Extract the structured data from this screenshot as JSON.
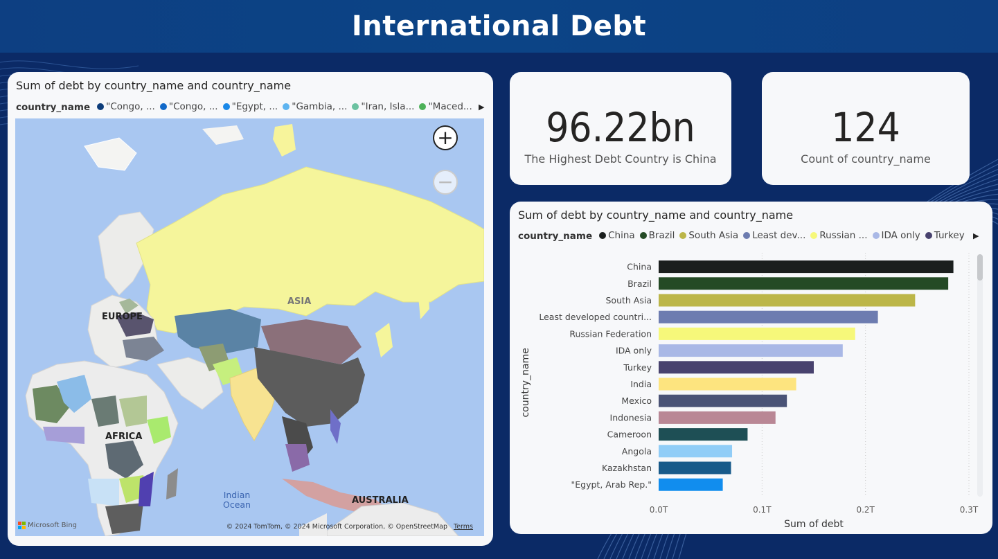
{
  "header": {
    "title": "International Debt"
  },
  "map_card": {
    "title": "Sum of debt by country_name and country_name",
    "legend_title": "country_name",
    "legend_items": [
      {
        "label": "\"Congo, ...",
        "color": "#0c3c7a"
      },
      {
        "label": "\"Congo, ...",
        "color": "#1169c9"
      },
      {
        "label": "\"Egypt, ...",
        "color": "#1988e8"
      },
      {
        "label": "\"Gambia, ...",
        "color": "#5eb4f0"
      },
      {
        "label": "\"Iran, Isla...",
        "color": "#6cc2a1"
      },
      {
        "label": "\"Maced...",
        "color": "#4cb158"
      }
    ],
    "zoom_in": "+",
    "zoom_out": "−",
    "labels": {
      "europe": "EUROPE",
      "asia": "ASIA",
      "africa": "AFRICA",
      "australia": "AUSTRALIA",
      "indian_ocean_1": "Indian",
      "indian_ocean_2": "Ocean"
    },
    "bing": "Microsoft Bing",
    "credits": "© 2024 TomTom, © 2024 Microsoft Corporation, © OpenStreetMap",
    "terms": "Terms"
  },
  "kpi_top": {
    "value": "96.22bn",
    "label": "The Highest Debt Country is China"
  },
  "kpi_count": {
    "value": "124",
    "label": "Count of country_name"
  },
  "bar_card": {
    "title": "Sum of debt by country_name and country_name",
    "legend_title": "country_name",
    "legend_items": [
      {
        "label": "China",
        "color": "#1b1f1e"
      },
      {
        "label": "Brazil",
        "color": "#244a25"
      },
      {
        "label": "South Asia",
        "color": "#bcb648"
      },
      {
        "label": "Least dev...",
        "color": "#6d7cb0"
      },
      {
        "label": "Russian ...",
        "color": "#f6f87a"
      },
      {
        "label": "IDA only",
        "color": "#a9b8e6"
      },
      {
        "label": "Turkey",
        "color": "#48426e"
      }
    ]
  },
  "chart_data": {
    "type": "bar",
    "orientation": "horizontal",
    "title": "Sum of debt by country_name and country_name",
    "xlabel": "Sum of debt",
    "ylabel": "country_name",
    "xlim": [
      0,
      0.3
    ],
    "x_unit": "T",
    "x_ticks": [
      "0.0T",
      "0.1T",
      "0.2T",
      "0.3T"
    ],
    "grid": "vertical-dotted",
    "legend": "top",
    "categories": [
      "China",
      "Brazil",
      "South Asia",
      "Least developed countri...",
      "Russian Federation",
      "IDA only",
      "Turkey",
      "India",
      "Mexico",
      "Indonesia",
      "Cameroon",
      "Angola",
      "Kazakhstan",
      "\"Egypt, Arab Rep.\""
    ],
    "values": [
      0.285,
      0.28,
      0.248,
      0.212,
      0.19,
      0.178,
      0.15,
      0.133,
      0.124,
      0.113,
      0.086,
      0.071,
      0.07,
      0.062
    ],
    "colors": [
      "#1b1f1e",
      "#244a25",
      "#bcb648",
      "#6d7cb0",
      "#f6f87a",
      "#a9b8e6",
      "#48426e",
      "#fde47f",
      "#4a5376",
      "#b98795",
      "#1e4f55",
      "#91cdf7",
      "#175a8a",
      "#118dee"
    ]
  }
}
